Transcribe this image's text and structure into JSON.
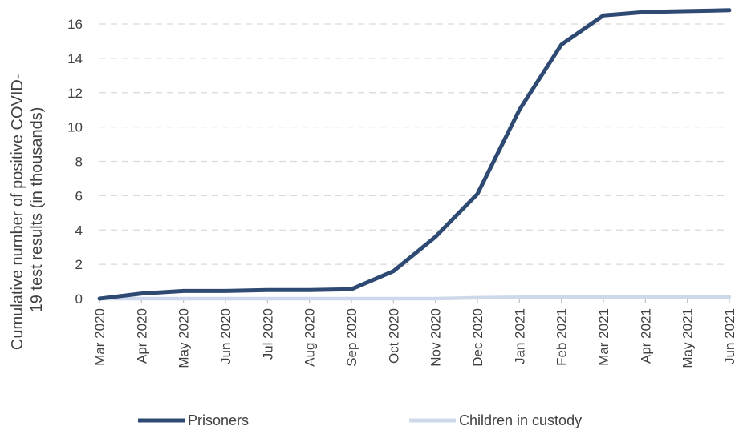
{
  "chart_data": {
    "type": "line",
    "title": "",
    "xlabel": "",
    "ylabel_lines": [
      "Cumulative number of positive COVID-",
      "19 test results (in thousands)"
    ],
    "categories": [
      "Mar 2020",
      "Apr 2020",
      "May 2020",
      "Jun 2020",
      "Jul 2020",
      "Aug 2020",
      "Sep 2020",
      "Oct 2020",
      "Nov 2020",
      "Dec 2020",
      "Jan 2021",
      "Feb 2021",
      "Mar 2021",
      "Apr 2021",
      "May 2021",
      "Jun 2021"
    ],
    "ylim": [
      0,
      16
    ],
    "yticks": [
      "0",
      "2",
      "4",
      "6",
      "8",
      "10",
      "12",
      "14",
      "16"
    ],
    "grid": true,
    "legend_position": "bottom",
    "series": [
      {
        "name": "Prisoners",
        "color": "#2e4a73",
        "values": [
          0.0,
          0.3,
          0.45,
          0.45,
          0.5,
          0.5,
          0.55,
          1.6,
          3.6,
          6.1,
          11.0,
          14.8,
          16.5,
          16.7,
          16.75,
          16.8
        ]
      },
      {
        "name": "Children in custody",
        "color": "#cdd9ea",
        "values": [
          0.0,
          0.0,
          0.0,
          0.0,
          0.0,
          0.0,
          0.0,
          0.0,
          0.0,
          0.05,
          0.08,
          0.1,
          0.1,
          0.1,
          0.1,
          0.1
        ]
      }
    ]
  }
}
